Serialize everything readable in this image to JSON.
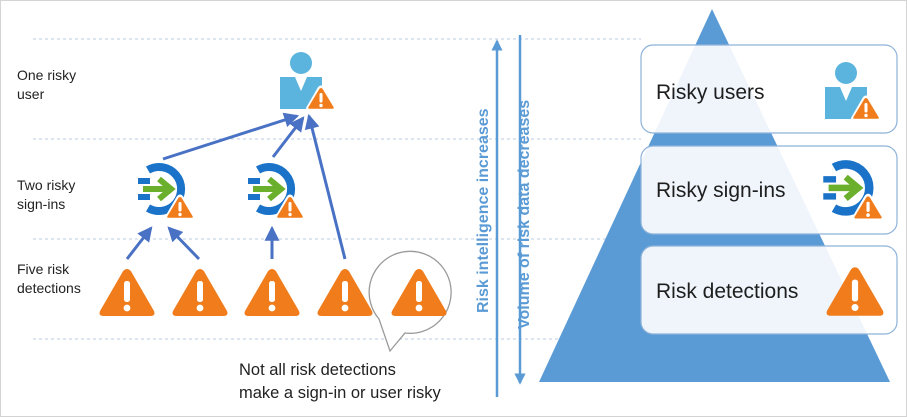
{
  "left_panel": {
    "level_labels": [
      [
        "One risky",
        "user"
      ],
      [
        "Two risky",
        "sign-ins"
      ],
      [
        "Five risk",
        "detections"
      ]
    ],
    "note": [
      "Not all risk detections",
      "make a sign-in or user risky"
    ]
  },
  "axes": {
    "left": "Risk intelligence increases",
    "right": "Volume of risk data decreases"
  },
  "pyramid": {
    "levels": [
      {
        "label": "Risky users",
        "icon": "user-warning-icon"
      },
      {
        "label": "Risky sign-ins",
        "icon": "signin-warning-icon"
      },
      {
        "label": "Risk detections",
        "icon": "warning-triangle-icon"
      }
    ]
  },
  "colors": {
    "warning": "#f07c1c",
    "accent_blue": "#5b9bd5",
    "dark_blue": "#1a73c8",
    "green": "#6ab02d",
    "pyramid": "#5b9bd5"
  }
}
